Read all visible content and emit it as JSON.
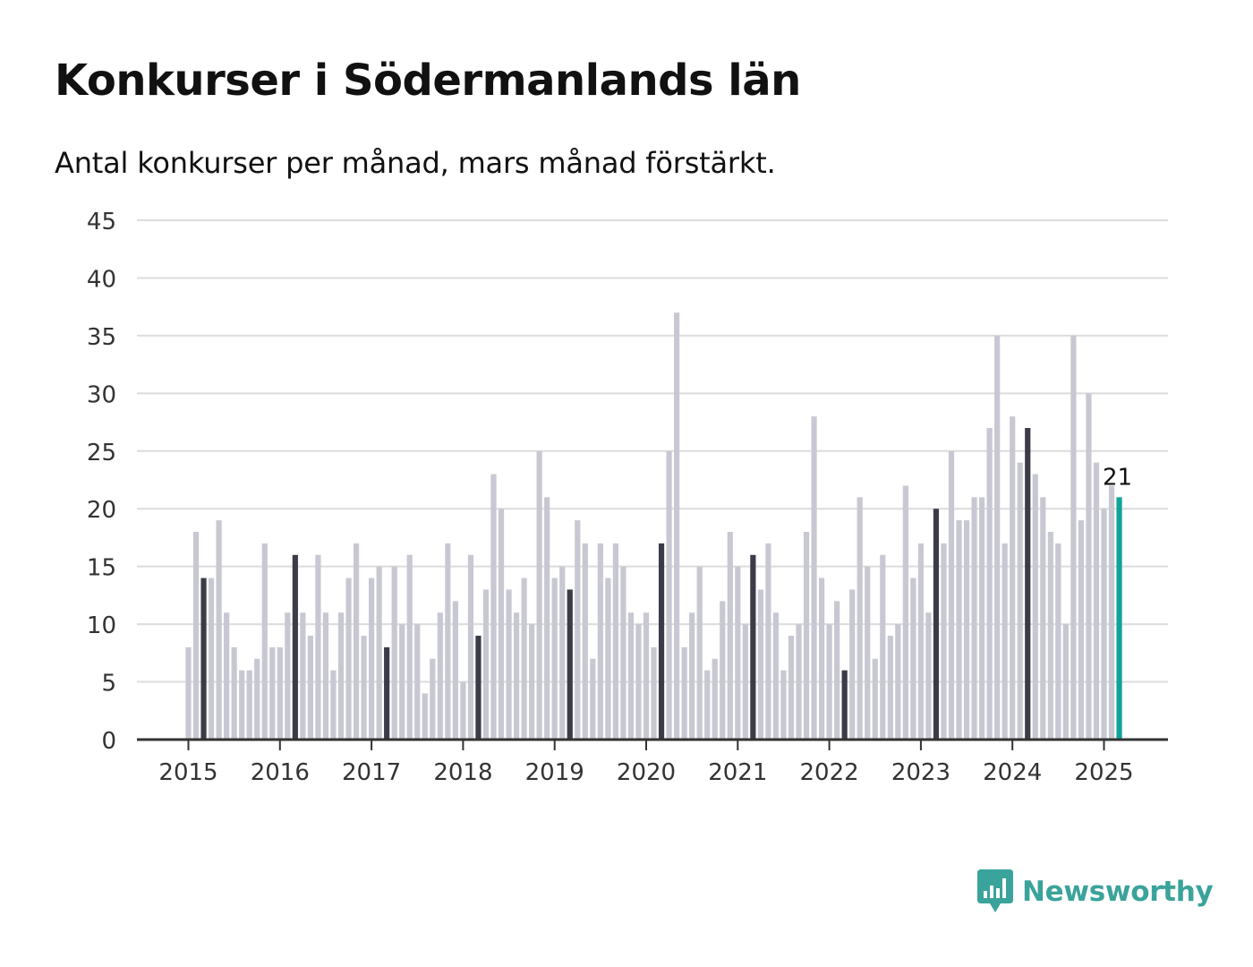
{
  "title": "Konkurser i Södermanlands län",
  "subtitle": "Antal konkurser per månad, mars månad förstärkt.",
  "brand": {
    "name": "Newsworthy",
    "icon": "bar-chart-logo-icon",
    "color": "#3aa39b"
  },
  "colors": {
    "bar": "#c8c8d2",
    "highlight": "#3c3c48",
    "latest": "#10a39a",
    "grid": "#dcdcdc",
    "axis": "#333333"
  },
  "chart_data": {
    "type": "bar",
    "ylim": [
      0,
      45
    ],
    "yticks": [
      "0",
      "5",
      "10",
      "15",
      "20",
      "25",
      "30",
      "35",
      "40",
      "45"
    ],
    "xticks": [
      "2015",
      "2016",
      "2017",
      "2018",
      "2019",
      "2020",
      "2021",
      "2022",
      "2023",
      "2024",
      "2025"
    ],
    "highlight": "mars",
    "annotation": {
      "label": "21",
      "month": "2025-03"
    },
    "months": [
      "2015-01",
      "2015-02",
      "2015-03",
      "2015-04",
      "2015-05",
      "2015-06",
      "2015-07",
      "2015-08",
      "2015-09",
      "2015-10",
      "2015-11",
      "2015-12",
      "2016-01",
      "2016-02",
      "2016-03",
      "2016-04",
      "2016-05",
      "2016-06",
      "2016-07",
      "2016-08",
      "2016-09",
      "2016-10",
      "2016-11",
      "2016-12",
      "2017-01",
      "2017-02",
      "2017-03",
      "2017-04",
      "2017-05",
      "2017-06",
      "2017-07",
      "2017-08",
      "2017-09",
      "2017-10",
      "2017-11",
      "2017-12",
      "2018-01",
      "2018-02",
      "2018-03",
      "2018-04",
      "2018-05",
      "2018-06",
      "2018-07",
      "2018-08",
      "2018-09",
      "2018-10",
      "2018-11",
      "2018-12",
      "2019-01",
      "2019-02",
      "2019-03",
      "2019-04",
      "2019-05",
      "2019-06",
      "2019-07",
      "2019-08",
      "2019-09",
      "2019-10",
      "2019-11",
      "2019-12",
      "2020-01",
      "2020-02",
      "2020-03",
      "2020-04",
      "2020-05",
      "2020-06",
      "2020-07",
      "2020-08",
      "2020-09",
      "2020-10",
      "2020-11",
      "2020-12",
      "2021-01",
      "2021-02",
      "2021-03",
      "2021-04",
      "2021-05",
      "2021-06",
      "2021-07",
      "2021-08",
      "2021-09",
      "2021-10",
      "2021-11",
      "2021-12",
      "2022-01",
      "2022-02",
      "2022-03",
      "2022-04",
      "2022-05",
      "2022-06",
      "2022-07",
      "2022-08",
      "2022-09",
      "2022-10",
      "2022-11",
      "2022-12",
      "2023-01",
      "2023-02",
      "2023-03",
      "2023-04",
      "2023-05",
      "2023-06",
      "2023-07",
      "2023-08",
      "2023-09",
      "2023-10",
      "2023-11",
      "2023-12",
      "2024-01",
      "2024-02",
      "2024-03",
      "2024-04",
      "2024-05",
      "2024-06",
      "2024-07",
      "2024-08",
      "2024-09",
      "2024-10",
      "2024-11",
      "2024-12",
      "2025-01",
      "2025-02",
      "2025-03"
    ],
    "values": [
      8,
      18,
      14,
      14,
      19,
      11,
      8,
      6,
      6,
      7,
      17,
      8,
      8,
      11,
      16,
      11,
      9,
      16,
      11,
      6,
      11,
      14,
      17,
      9,
      14,
      15,
      8,
      15,
      10,
      16,
      10,
      4,
      7,
      11,
      17,
      12,
      5,
      16,
      9,
      13,
      23,
      20,
      13,
      11,
      14,
      10,
      25,
      21,
      14,
      15,
      13,
      19,
      17,
      7,
      17,
      14,
      17,
      15,
      11,
      10,
      11,
      8,
      17,
      25,
      37,
      8,
      11,
      15,
      6,
      7,
      12,
      18,
      15,
      10,
      16,
      13,
      17,
      11,
      6,
      9,
      10,
      18,
      28,
      14,
      10,
      12,
      6,
      13,
      21,
      15,
      7,
      16,
      9,
      10,
      22,
      14,
      17,
      11,
      20,
      17,
      25,
      19,
      19,
      21,
      21,
      27,
      35,
      17,
      28,
      24,
      27,
      23,
      21,
      18,
      17,
      10,
      35,
      19,
      30,
      24,
      20,
      22,
      21
    ]
  }
}
